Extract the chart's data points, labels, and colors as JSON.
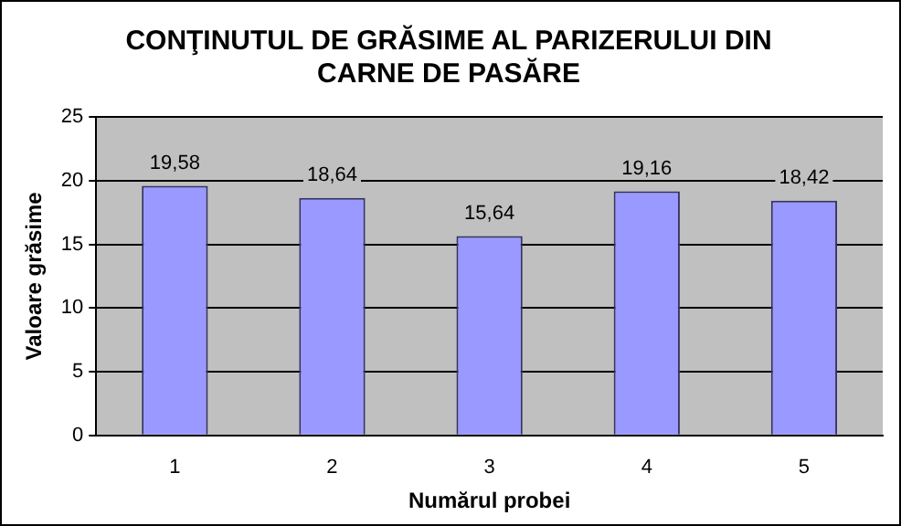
{
  "chart_data": {
    "type": "bar",
    "title": "CONŢINUTUL DE GRĂSIME AL PARIZERULUI DIN CARNE DE PASĂRE",
    "xlabel": "Numărul probei",
    "ylabel": "Valoare grăsime",
    "categories": [
      "1",
      "2",
      "3",
      "4",
      "5"
    ],
    "values": [
      19.58,
      18.64,
      15.64,
      19.16,
      18.42
    ],
    "value_labels": [
      "19,58",
      "18,64",
      "15,64",
      "19,16",
      "18,42"
    ],
    "color": "#9999ff",
    "ylim": [
      0,
      25
    ],
    "yticks": [
      0,
      5,
      10,
      15,
      20,
      25
    ],
    "grid": "y",
    "legend": false
  }
}
